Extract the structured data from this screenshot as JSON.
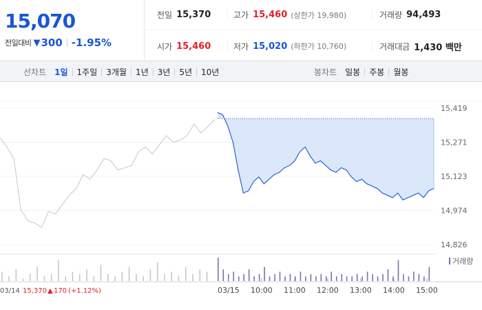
{
  "quote": {
    "price": "15,070",
    "change_label": "전일대비",
    "change_symbol": "▼",
    "change_value": "300",
    "change_pct": "-1.95%",
    "row1": [
      {
        "label": "전일",
        "value": "15,370",
        "color": "dark"
      },
      {
        "label": "고가",
        "value": "15,460",
        "color": "red",
        "sub": "(상한가 19,980)"
      },
      {
        "label": "거래량",
        "value": "94,493",
        "color": "dark"
      }
    ],
    "row2": [
      {
        "label": "시가",
        "value": "15,460",
        "color": "red"
      },
      {
        "label": "저가",
        "value": "15,020",
        "color": "blue",
        "sub": "(하한가 10,760)"
      },
      {
        "label": "거래대금",
        "value": "1,430 백만",
        "color": "dark"
      }
    ]
  },
  "tabs": {
    "line_title": "선차트",
    "line_tabs": [
      "1일",
      "1주일",
      "3개월",
      "1년",
      "3년",
      "5년",
      "10년"
    ],
    "line_active": 0,
    "candle_title": "봉차트",
    "candle_tabs": [
      "일봉",
      "주봉",
      "월봉"
    ]
  },
  "colors": {
    "up": "#e3222b",
    "down": "#1a56d6",
    "today_line": "#2a5fd9",
    "today_fill": "#dbe7fb",
    "prev_line": "#c8c8c8",
    "today_volume": "#7f6fa6",
    "prev_volume": "#c6c6c6"
  },
  "chart_data": {
    "type": "line",
    "y_ticks": [
      "15,419",
      "15,271",
      "15,123",
      "14,974",
      "14,826"
    ],
    "ylim": [
      14826,
      15419
    ],
    "x_ticks": [
      "03/14",
      "03/15",
      "10:00",
      "11:00",
      "12:00",
      "13:00",
      "14:00",
      "15:00"
    ],
    "volume_legend": "거래량",
    "prev_day_info": {
      "date": "03/14",
      "close": "15,370",
      "arrow": "▲",
      "change": "170",
      "pct": "(+1.12%)"
    },
    "series": [
      {
        "values": [
          15290,
          15250,
          15200,
          14980,
          14930,
          14920,
          14900,
          14970,
          14960,
          15000,
          15040,
          15070,
          15130,
          15110,
          15150,
          15200,
          15190,
          15150,
          15160,
          15170,
          15230,
          15250,
          15220,
          15260,
          15300,
          15270,
          15280,
          15300,
          15350,
          15310,
          15340,
          15370
        ]
      },
      {
        "values": [
          15400,
          15390,
          15340,
          15270,
          15150,
          15050,
          15060,
          15100,
          15120,
          15090,
          15110,
          15130,
          15140,
          15160,
          15170,
          15190,
          15230,
          15250,
          15210,
          15180,
          15190,
          15170,
          15150,
          15140,
          15160,
          15150,
          15120,
          15100,
          15110,
          15090,
          15080,
          15070,
          15050,
          15040,
          15030,
          15050,
          15020,
          15030,
          15040,
          15050,
          15030,
          15060,
          15070
        ]
      }
    ],
    "volume": {
      "prev": [
        0.4,
        0.2,
        0.5,
        0.1,
        0.3,
        0.6,
        0.2,
        0.3,
        0.9,
        0.2,
        0.4,
        0.3,
        0.5,
        0.2,
        0.7,
        0.3,
        0.2,
        0.4,
        0.6,
        0.3,
        0.2,
        0.5,
        0.8,
        0.3,
        0.4,
        0.2,
        0.6,
        0.3,
        0.5,
        0.4
      ],
      "today": [
        1.0,
        0.5,
        0.3,
        0.4,
        0.2,
        0.3,
        0.5,
        0.2,
        0.3,
        0.6,
        0.2,
        0.3,
        0.4,
        0.2,
        0.3,
        0.2,
        0.4,
        0.2,
        0.3,
        0.2,
        0.3,
        0.2,
        0.4,
        0.2,
        0.3,
        0.2,
        0.2,
        0.3,
        0.2,
        0.4,
        0.3,
        0.2,
        0.3,
        0.5,
        0.2,
        0.9,
        0.3,
        0.2,
        0.4,
        0.3,
        0.2,
        0.6
      ]
    }
  }
}
